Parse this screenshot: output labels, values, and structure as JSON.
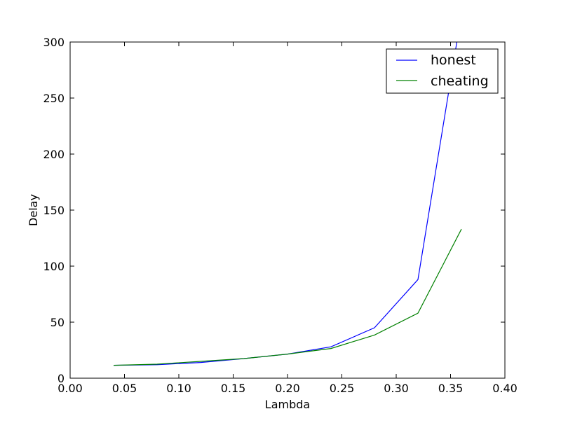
{
  "chart_data": {
    "type": "line",
    "title": "",
    "xlabel": "Lambda",
    "ylabel": "Delay",
    "xlim": [
      0.0,
      0.4
    ],
    "ylim": [
      0,
      300
    ],
    "xticks": [
      0.0,
      0.05,
      0.1,
      0.15,
      0.2,
      0.25,
      0.3,
      0.35,
      0.4
    ],
    "xtick_labels": [
      "0.00",
      "0.05",
      "0.10",
      "0.15",
      "0.20",
      "0.25",
      "0.30",
      "0.35",
      "0.40"
    ],
    "yticks": [
      0,
      50,
      100,
      150,
      200,
      250,
      300
    ],
    "ytick_labels": [
      "0",
      "50",
      "100",
      "150",
      "200",
      "250",
      "300"
    ],
    "grid": false,
    "legend_position": "top-right",
    "x": [
      0.04,
      0.08,
      0.12,
      0.16,
      0.2,
      0.24,
      0.28,
      0.32,
      0.36
    ],
    "series": [
      {
        "name": "honest",
        "color": "#0000ff",
        "values": [
          11.5,
          12,
          14,
          17.5,
          21.5,
          28,
          45,
          88,
          325
        ]
      },
      {
        "name": "cheating",
        "color": "#008000",
        "values": [
          11.5,
          12.5,
          15,
          17.5,
          21.5,
          26.5,
          38.5,
          58,
          133
        ]
      }
    ]
  }
}
